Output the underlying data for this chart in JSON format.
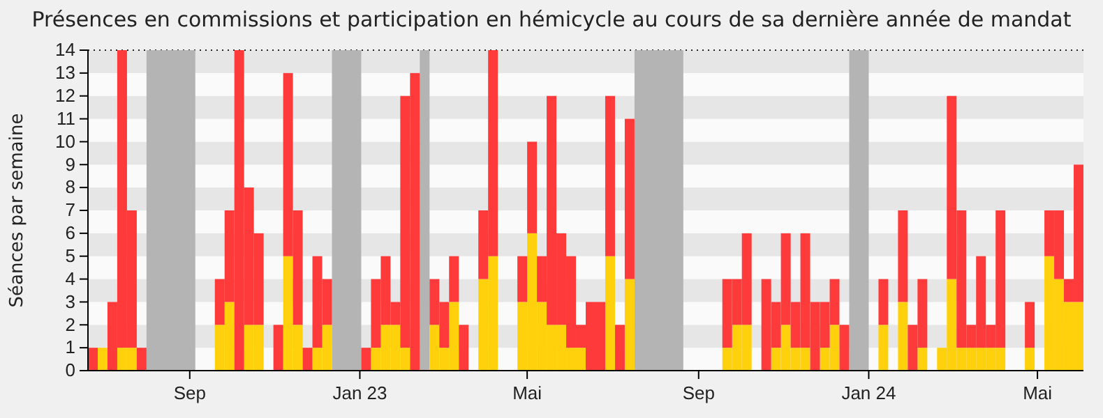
{
  "chart_data": {
    "type": "bar",
    "title": "Présences en commissions et participation en hémicycle au cours de sa dernière année de mandat",
    "ylabel": "Séances par semaine",
    "x": [
      "2022-06-20",
      "2022-06-27",
      "2022-07-04",
      "2022-07-11",
      "2022-07-18",
      "2022-07-25",
      "2022-08-01",
      "2022-08-08",
      "2022-08-15",
      "2022-08-22",
      "2022-08-29",
      "2022-09-05",
      "2022-09-12",
      "2022-09-19",
      "2022-09-26",
      "2022-10-03",
      "2022-10-10",
      "2022-10-17",
      "2022-10-24",
      "2022-10-31",
      "2022-11-07",
      "2022-11-14",
      "2022-11-21",
      "2022-11-28",
      "2022-12-05",
      "2022-12-12",
      "2022-12-19",
      "2022-12-26",
      "2023-01-02",
      "2023-01-09",
      "2023-01-16",
      "2023-01-23",
      "2023-01-30",
      "2023-02-06",
      "2023-02-13",
      "2023-02-20",
      "2023-02-27",
      "2023-03-06",
      "2023-03-13",
      "2023-03-20",
      "2023-03-27",
      "2023-04-03",
      "2023-04-10",
      "2023-04-17",
      "2023-04-24",
      "2023-05-01",
      "2023-05-08",
      "2023-05-15",
      "2023-05-22",
      "2023-05-29",
      "2023-06-05",
      "2023-06-12",
      "2023-06-19",
      "2023-06-26",
      "2023-07-03",
      "2023-07-10",
      "2023-07-17",
      "2023-07-24",
      "2023-07-31",
      "2023-08-07",
      "2023-08-14",
      "2023-08-21",
      "2023-08-28",
      "2023-09-04",
      "2023-09-11",
      "2023-09-18",
      "2023-09-25",
      "2023-10-02",
      "2023-10-09",
      "2023-10-16",
      "2023-10-23",
      "2023-10-30",
      "2023-11-06",
      "2023-11-13",
      "2023-11-20",
      "2023-11-27",
      "2023-12-04",
      "2023-12-11",
      "2023-12-18",
      "2023-12-25",
      "2024-01-01",
      "2024-01-08",
      "2024-01-15",
      "2024-01-22",
      "2024-01-29",
      "2024-02-05",
      "2024-02-12",
      "2024-02-19",
      "2024-02-26",
      "2024-03-04",
      "2024-03-11",
      "2024-03-18",
      "2024-03-25",
      "2024-04-01",
      "2024-04-08",
      "2024-04-15",
      "2024-04-22",
      "2024-04-29",
      "2024-05-06",
      "2024-05-13",
      "2024-05-20",
      "2024-05-27"
    ],
    "stacked": true,
    "series": [
      {
        "color": "#ffd10d",
        "values": [
          0,
          1,
          0,
          1,
          1,
          0,
          null,
          null,
          null,
          null,
          null,
          0,
          0,
          2,
          3,
          0,
          2,
          2,
          0,
          0,
          5,
          2,
          0,
          1,
          2,
          null,
          null,
          null,
          0,
          1,
          2,
          2,
          1,
          0,
          null,
          2,
          1,
          3,
          0,
          0,
          4,
          5,
          0,
          0,
          3,
          6,
          3,
          2,
          2,
          1,
          1,
          0,
          0,
          5,
          0,
          4,
          null,
          null,
          null,
          null,
          null,
          0,
          0,
          0,
          0,
          1,
          2,
          2,
          0,
          0,
          1,
          2,
          1,
          1,
          0,
          1,
          2,
          0,
          null,
          null,
          0,
          2,
          0,
          3,
          0,
          1,
          0,
          1,
          4,
          1,
          1,
          1,
          1,
          1,
          0,
          0,
          1,
          0,
          5,
          4,
          3,
          3
        ]
      },
      {
        "color": "#ff3a3a",
        "values": [
          1,
          0,
          3,
          13,
          6,
          1,
          null,
          null,
          null,
          null,
          null,
          0,
          0,
          2,
          4,
          14,
          6,
          4,
          0,
          2,
          8,
          5,
          1,
          4,
          2,
          null,
          null,
          null,
          1,
          3,
          3,
          1,
          11,
          13,
          null,
          2,
          2,
          2,
          2,
          0,
          3,
          9,
          0,
          0,
          2,
          4,
          2,
          10,
          4,
          4,
          1,
          3,
          3,
          7,
          2,
          7,
          null,
          null,
          null,
          null,
          null,
          0,
          0,
          0,
          0,
          3,
          2,
          4,
          0,
          4,
          2,
          4,
          2,
          5,
          3,
          2,
          2,
          2,
          null,
          null,
          0,
          2,
          0,
          4,
          2,
          3,
          0,
          0,
          8,
          6,
          1,
          4,
          1,
          6,
          0,
          0,
          2,
          0,
          2,
          3,
          1,
          6
        ]
      }
    ],
    "bands": [
      {
        "axis": "x",
        "from": "2022-08-01",
        "to": "2022-09-05",
        "color": "#b4b4b4"
      },
      {
        "axis": "x",
        "from": "2022-12-12",
        "to": "2023-01-02",
        "color": "#b4b4b4"
      },
      {
        "axis": "x",
        "from": "2023-02-13",
        "to": "2023-02-20",
        "color": "#b4b4b4"
      },
      {
        "axis": "x",
        "from": "2023-07-17",
        "to": "2023-08-21",
        "color": "#b4b4b4"
      },
      {
        "axis": "x",
        "from": "2023-12-18",
        "to": "2024-01-01",
        "color": "#b4b4b4"
      }
    ],
    "xlim": [
      "2022-06-20",
      "2024-06-03"
    ],
    "xticks": [
      {
        "value": "2022-09-01",
        "label": "Sep"
      },
      {
        "value": "2023-01-01",
        "label": "Jan 23"
      },
      {
        "value": "2023-05-01",
        "label": "Mai"
      },
      {
        "value": "2023-09-01",
        "label": "Sep"
      },
      {
        "value": "2024-01-01",
        "label": "Jan 24"
      },
      {
        "value": "2024-05-01",
        "label": "Mai"
      }
    ],
    "ylim": [
      0,
      14
    ],
    "yticks": [
      0,
      1,
      2,
      3,
      4,
      5,
      6,
      7,
      8,
      9,
      10,
      11,
      12,
      13,
      14
    ]
  }
}
